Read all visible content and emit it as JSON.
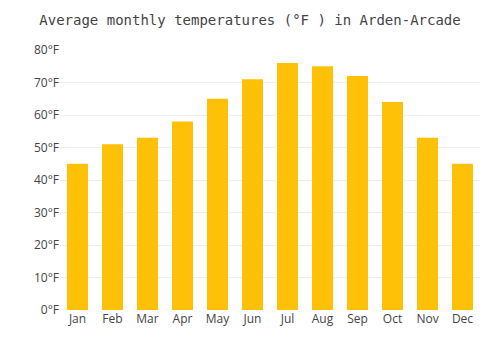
{
  "chart_data": {
    "type": "bar",
    "title": "Average monthly temperatures (°F ) in Arden-Arcade",
    "categories": [
      "Jan",
      "Feb",
      "Mar",
      "Apr",
      "May",
      "Jun",
      "Jul",
      "Aug",
      "Sep",
      "Oct",
      "Nov",
      "Dec"
    ],
    "values": [
      45,
      51,
      53,
      58,
      65,
      71,
      76,
      75,
      72,
      64,
      53,
      45
    ],
    "color": "#FFC107",
    "ylim": [
      0,
      80
    ],
    "yticks": [
      {
        "value": 0,
        "label": "0°F"
      },
      {
        "value": 10,
        "label": "10°F"
      },
      {
        "value": 20,
        "label": "20°F"
      },
      {
        "value": 30,
        "label": "30°F"
      },
      {
        "value": 40,
        "label": "40°F"
      },
      {
        "value": 50,
        "label": "50°F"
      },
      {
        "value": 60,
        "label": "60°F"
      },
      {
        "value": 70,
        "label": "70°F"
      },
      {
        "value": 80,
        "label": "80°F"
      }
    ],
    "grid": true
  }
}
